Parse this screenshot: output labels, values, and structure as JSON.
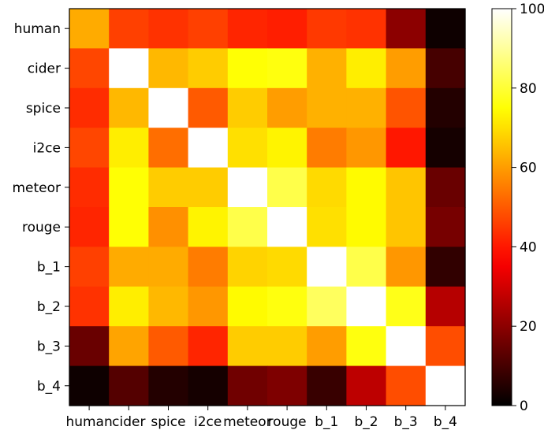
{
  "chart_data": {
    "type": "heatmap",
    "rows": [
      "human",
      "cider",
      "spice",
      "i2ce",
      "meteor",
      "rouge",
      "b_1",
      "b_2",
      "b_3",
      "b_4"
    ],
    "cols": [
      "human",
      "cider",
      "spice",
      "i2ce",
      "meteor",
      "rouge",
      "b_1",
      "b_2",
      "b_3",
      "b_4"
    ],
    "values": [
      [
        62,
        46,
        44,
        46,
        42,
        41,
        45,
        44,
        20,
        2
      ],
      [
        47,
        100,
        64,
        67,
        75,
        76,
        63,
        72,
        60,
        10
      ],
      [
        43,
        64,
        100,
        50,
        67,
        60,
        63,
        63,
        49,
        5
      ],
      [
        47,
        72,
        53,
        100,
        70,
        73,
        55,
        59,
        40,
        3
      ],
      [
        43,
        75,
        67,
        67,
        100,
        82,
        69,
        74,
        66,
        15
      ],
      [
        42,
        75,
        58,
        73,
        82,
        100,
        70,
        74,
        66,
        17
      ],
      [
        46,
        62,
        62,
        55,
        68,
        69,
        100,
        82,
        59,
        7
      ],
      [
        44,
        72,
        64,
        59,
        74,
        76,
        84,
        100,
        77,
        26
      ],
      [
        15,
        61,
        50,
        42,
        67,
        67,
        60,
        76,
        100,
        48
      ],
      [
        2,
        12,
        5,
        3,
        16,
        18,
        8,
        27,
        48,
        100
      ]
    ],
    "xlabel": "",
    "ylabel": "",
    "colormap": "hot",
    "colorbar": {
      "min": 0,
      "max": 100,
      "ticks": [
        "0",
        "20",
        "40",
        "60",
        "80",
        "100"
      ]
    },
    "grid": false
  }
}
